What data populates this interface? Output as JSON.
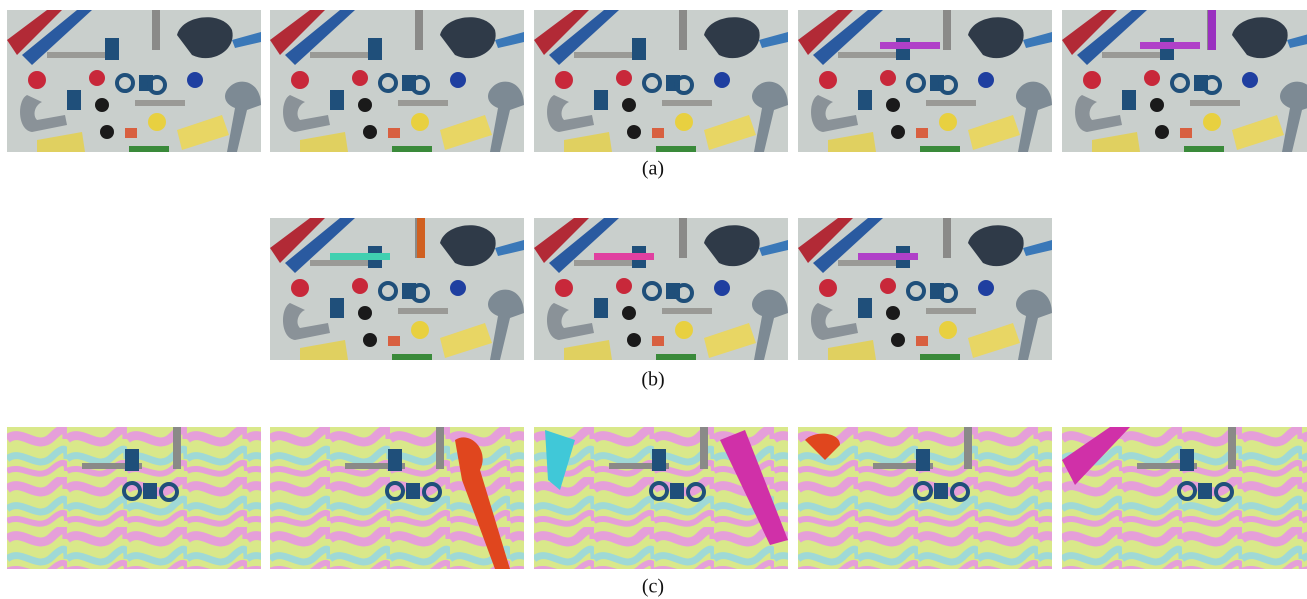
{
  "figure": {
    "rows": [
      {
        "caption": "(a)"
      },
      {
        "caption": "(b)"
      },
      {
        "caption": "(c)"
      }
    ]
  }
}
